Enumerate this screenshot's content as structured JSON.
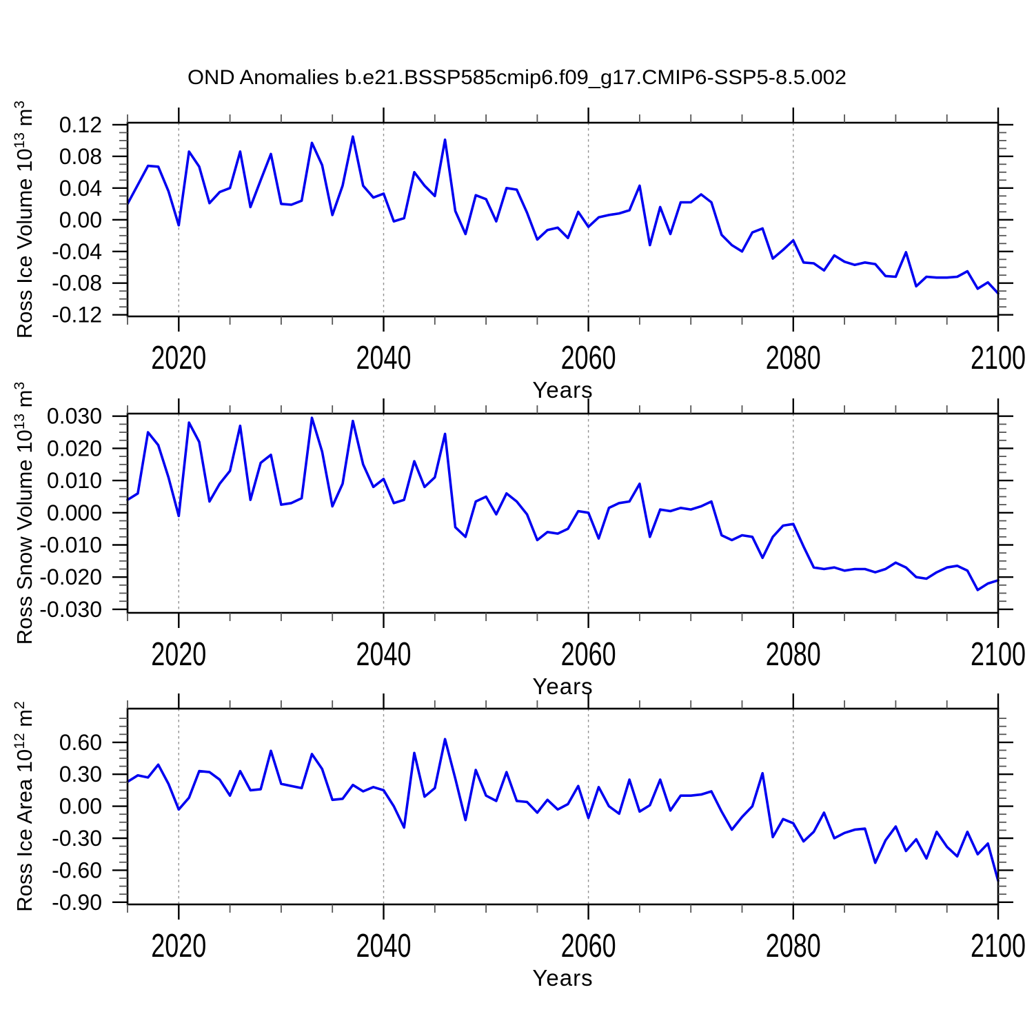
{
  "title": "OND Anomalies b.e21.BSSP585cmip6.f09_g17.CMIP6-SSP5-8.5.002",
  "xlabel": "Years",
  "background_color": "#ffffff",
  "axis_color": "#000000",
  "line_color": "#0000f0",
  "grid_color": "#909090",
  "chart_data": [
    {
      "type": "line",
      "id": "ross-ice-volume",
      "ylabel": "Ross Ice Volume 10¹³ m³",
      "ylabel_parts": {
        "base": "Ross Ice Volume 10",
        "exp": "13",
        "unit": " m",
        "unit_exp": "3"
      },
      "x": {
        "start": 2015,
        "end": 2100,
        "step": 1
      },
      "xticks": [
        2020,
        2040,
        2060,
        2080,
        2100
      ],
      "x_minor_step": 5,
      "gridlines_x": [
        2020,
        2040,
        2060,
        2080
      ],
      "ylim": [
        -0.122,
        0.1225
      ],
      "yticks": [
        0.12,
        0.08,
        0.04,
        0.0,
        -0.04,
        -0.08,
        -0.12
      ],
      "ytick_labels": [
        "0.12",
        "0.08",
        "0.04",
        "0.00",
        "-0.04",
        "-0.08",
        "-0.12"
      ],
      "y_major_step": 0.04,
      "y_minor_step": 0.01,
      "values": [
        0.02,
        0.044,
        0.068,
        0.067,
        0.036,
        -0.007,
        0.086,
        0.067,
        0.021,
        0.035,
        0.04,
        0.086,
        0.016,
        0.05,
        0.083,
        0.02,
        0.019,
        0.024,
        0.097,
        0.069,
        0.006,
        0.043,
        0.105,
        0.043,
        0.028,
        0.033,
        -0.002,
        0.002,
        0.06,
        0.043,
        0.03,
        0.101,
        0.011,
        -0.018,
        0.031,
        0.026,
        -0.002,
        0.04,
        0.038,
        0.009,
        -0.025,
        -0.013,
        -0.01,
        -0.023,
        0.01,
        -0.009,
        0.003,
        0.006,
        0.008,
        0.012,
        0.043,
        -0.032,
        0.016,
        -0.018,
        0.022,
        0.022,
        0.032,
        0.022,
        -0.019,
        -0.032,
        -0.04,
        -0.016,
        -0.011,
        -0.049,
        -0.038,
        -0.026,
        -0.054,
        -0.055,
        -0.064,
        -0.045,
        -0.053,
        -0.057,
        -0.054,
        -0.056,
        -0.071,
        -0.072,
        -0.041,
        -0.084,
        -0.072,
        -0.073,
        -0.073,
        -0.072,
        -0.065,
        -0.087,
        -0.079,
        -0.093
      ]
    },
    {
      "type": "line",
      "id": "ross-snow-volume",
      "ylabel": "Ross Snow Volume 10¹³ m³",
      "ylabel_parts": {
        "base": "Ross Snow Volume 10",
        "exp": "13",
        "unit": " m",
        "unit_exp": "3"
      },
      "x": {
        "start": 2015,
        "end": 2100,
        "step": 1
      },
      "xticks": [
        2020,
        2040,
        2060,
        2080,
        2100
      ],
      "x_minor_step": 5,
      "gridlines_x": [
        2020,
        2040,
        2060,
        2080
      ],
      "ylim": [
        -0.0311,
        0.0308
      ],
      "yticks": [
        0.03,
        0.02,
        0.01,
        0.0,
        -0.01,
        -0.02,
        -0.03
      ],
      "ytick_labels": [
        "0.030",
        "0.020",
        "0.010",
        "0.000",
        "-0.010",
        "-0.020",
        "-0.030"
      ],
      "y_major_step": 0.01,
      "y_minor_step": 0.0025,
      "values": [
        0.004,
        0.006,
        0.025,
        0.021,
        0.011,
        -0.001,
        0.028,
        0.022,
        0.0035,
        0.009,
        0.013,
        0.027,
        0.004,
        0.0155,
        0.018,
        0.0025,
        0.003,
        0.0045,
        0.0295,
        0.019,
        0.002,
        0.009,
        0.0285,
        0.015,
        0.008,
        0.0105,
        0.003,
        0.004,
        0.016,
        0.008,
        0.011,
        0.0245,
        -0.0045,
        -0.0075,
        0.0035,
        0.005,
        -0.0005,
        0.006,
        0.0035,
        -0.0005,
        -0.0085,
        -0.006,
        -0.0065,
        -0.005,
        0.0005,
        0.0,
        -0.008,
        0.0015,
        0.003,
        0.0035,
        0.009,
        -0.0075,
        0.001,
        0.0005,
        0.0015,
        0.001,
        0.002,
        0.0035,
        -0.007,
        -0.0085,
        -0.007,
        -0.0075,
        -0.014,
        -0.0075,
        -0.004,
        -0.0035,
        -0.0105,
        -0.017,
        -0.0175,
        -0.017,
        -0.018,
        -0.0175,
        -0.0175,
        -0.0185,
        -0.0175,
        -0.0155,
        -0.017,
        -0.02,
        -0.0205,
        -0.0185,
        -0.017,
        -0.0165,
        -0.018,
        -0.024,
        -0.022,
        -0.021
      ]
    },
    {
      "type": "line",
      "id": "ross-ice-area",
      "ylabel": "Ross Ice Area 10¹² m²",
      "ylabel_parts": {
        "base": "Ross Ice Area 10",
        "exp": "12",
        "unit": " m",
        "unit_exp": "2"
      },
      "x": {
        "start": 2015,
        "end": 2100,
        "step": 1
      },
      "xticks": [
        2020,
        2040,
        2060,
        2080,
        2100
      ],
      "x_minor_step": 5,
      "gridlines_x": [
        2020,
        2040,
        2060,
        2080
      ],
      "ylim": [
        -0.921,
        0.916
      ],
      "yticks": [
        0.6,
        0.3,
        0.0,
        -0.3,
        -0.6,
        -0.9
      ],
      "ytick_labels": [
        "0.60",
        "0.30",
        "0.00",
        "-0.30",
        "-0.60",
        "-0.90"
      ],
      "y_major_step": 0.3,
      "y_minor_step": 0.075,
      "values": [
        0.23,
        0.29,
        0.27,
        0.39,
        0.21,
        -0.03,
        0.08,
        0.33,
        0.32,
        0.25,
        0.1,
        0.33,
        0.15,
        0.16,
        0.52,
        0.21,
        0.19,
        0.17,
        0.49,
        0.35,
        0.06,
        0.07,
        0.2,
        0.14,
        0.18,
        0.15,
        0.0,
        -0.2,
        0.5,
        0.09,
        0.17,
        0.63,
        0.26,
        -0.13,
        0.34,
        0.1,
        0.05,
        0.32,
        0.05,
        0.04,
        -0.06,
        0.06,
        -0.03,
        0.02,
        0.19,
        -0.11,
        0.18,
        0.0,
        -0.07,
        0.25,
        -0.05,
        0.01,
        0.25,
        -0.04,
        0.1,
        0.1,
        0.11,
        0.14,
        -0.05,
        -0.22,
        -0.1,
        0.0,
        0.31,
        -0.29,
        -0.12,
        -0.16,
        -0.33,
        -0.24,
        -0.06,
        -0.3,
        -0.25,
        -0.22,
        -0.21,
        -0.53,
        -0.32,
        -0.19,
        -0.42,
        -0.31,
        -0.49,
        -0.24,
        -0.38,
        -0.47,
        -0.24,
        -0.45,
        -0.35,
        -0.7
      ]
    }
  ]
}
